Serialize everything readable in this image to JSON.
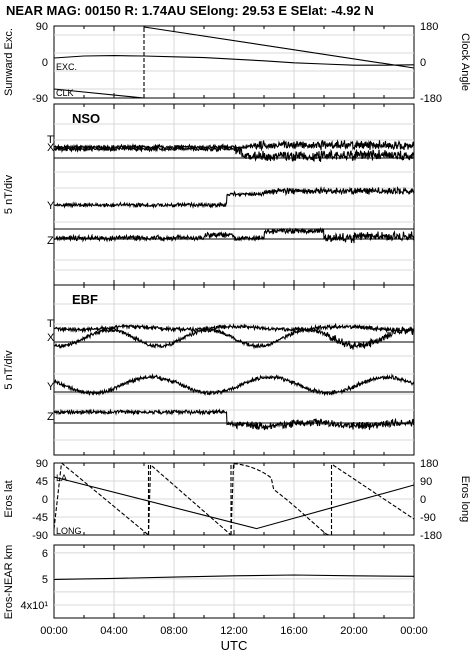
{
  "header": {
    "title": "NEAR MAG: 00150  R: 1.74AU  SElong:   29.53 E  SElat:   -4.92 N"
  },
  "chart_data": [
    {
      "type": "line",
      "id": "panel1",
      "ylabel_left": "Sunward Exc.",
      "ylabel_right": "Clock Angle",
      "left_ticks": [
        "90",
        "0",
        "-90"
      ],
      "right_ticks": [
        "180",
        "0",
        "-180"
      ],
      "ylim_left": [
        -90,
        90
      ],
      "ylim_right": [
        -180,
        180
      ],
      "annotations": [
        "EXC.",
        "CLK"
      ],
      "series": [
        {
          "name": "EXC.",
          "x": [
            0,
            2,
            4,
            6,
            8,
            10,
            12,
            14,
            16,
            18,
            20,
            22,
            24
          ],
          "y": [
            10,
            15,
            16,
            15,
            13,
            11,
            7,
            3,
            -2,
            -5,
            -8,
            -8,
            -7
          ]
        },
        {
          "name": "CLK",
          "x": [
            0,
            6,
            6,
            24
          ],
          "y": [
            -135,
            -180,
            180,
            -30
          ]
        }
      ]
    },
    {
      "type": "line",
      "id": "panel2",
      "title": "NSO",
      "ylabel_left": "5 nT/div",
      "trace_labels": [
        "T",
        "X",
        "Y",
        "Z"
      ]
    },
    {
      "type": "line",
      "id": "panel3",
      "title": "EBF",
      "ylabel_left": "5 nT/div",
      "trace_labels": [
        "T",
        "X",
        "Y",
        "Z"
      ]
    },
    {
      "type": "line",
      "id": "panel4",
      "ylabel_left": "Eros lat",
      "ylabel_right": "Eros long",
      "left_ticks": [
        "90",
        "45",
        "0",
        "-45",
        "-90"
      ],
      "right_ticks": [
        "180",
        "90",
        "0",
        "-90",
        "-180"
      ],
      "ylim_left": [
        -90,
        90
      ],
      "ylim_right": [
        -180,
        180
      ],
      "annotations": [
        "LA",
        "LONG"
      ],
      "series": [
        {
          "name": "LAT",
          "x": [
            0,
            13.5,
            24
          ],
          "y": [
            55,
            -74,
            35
          ]
        },
        {
          "name": "LONG",
          "x": [
            0,
            0.5,
            6.3,
            6.3,
            7,
            11.8,
            11.8,
            12.5,
            18.5,
            18.6,
            19.2,
            24
          ],
          "y": [
            -150,
            180,
            -180,
            180,
            150,
            -180,
            180,
            150,
            -180,
            170,
            150,
            -100
          ]
        }
      ]
    },
    {
      "type": "line",
      "id": "panel5",
      "ylabel_left": "Eros-NEAR km",
      "left_ticks": [
        "6",
        "5",
        "4x10¹"
      ],
      "series": [
        {
          "name": "DIST",
          "x": [
            0,
            2,
            4,
            8,
            12,
            16,
            20,
            24
          ],
          "y": [
            4.98,
            5.0,
            5.02,
            5.07,
            5.12,
            5.15,
            5.12,
            5.1
          ]
        }
      ]
    }
  ],
  "x_axis": {
    "label": "UTC",
    "ticks": [
      "00:00",
      "04:00",
      "08:00",
      "12:00",
      "16:00",
      "20:00",
      "00:00"
    ]
  }
}
